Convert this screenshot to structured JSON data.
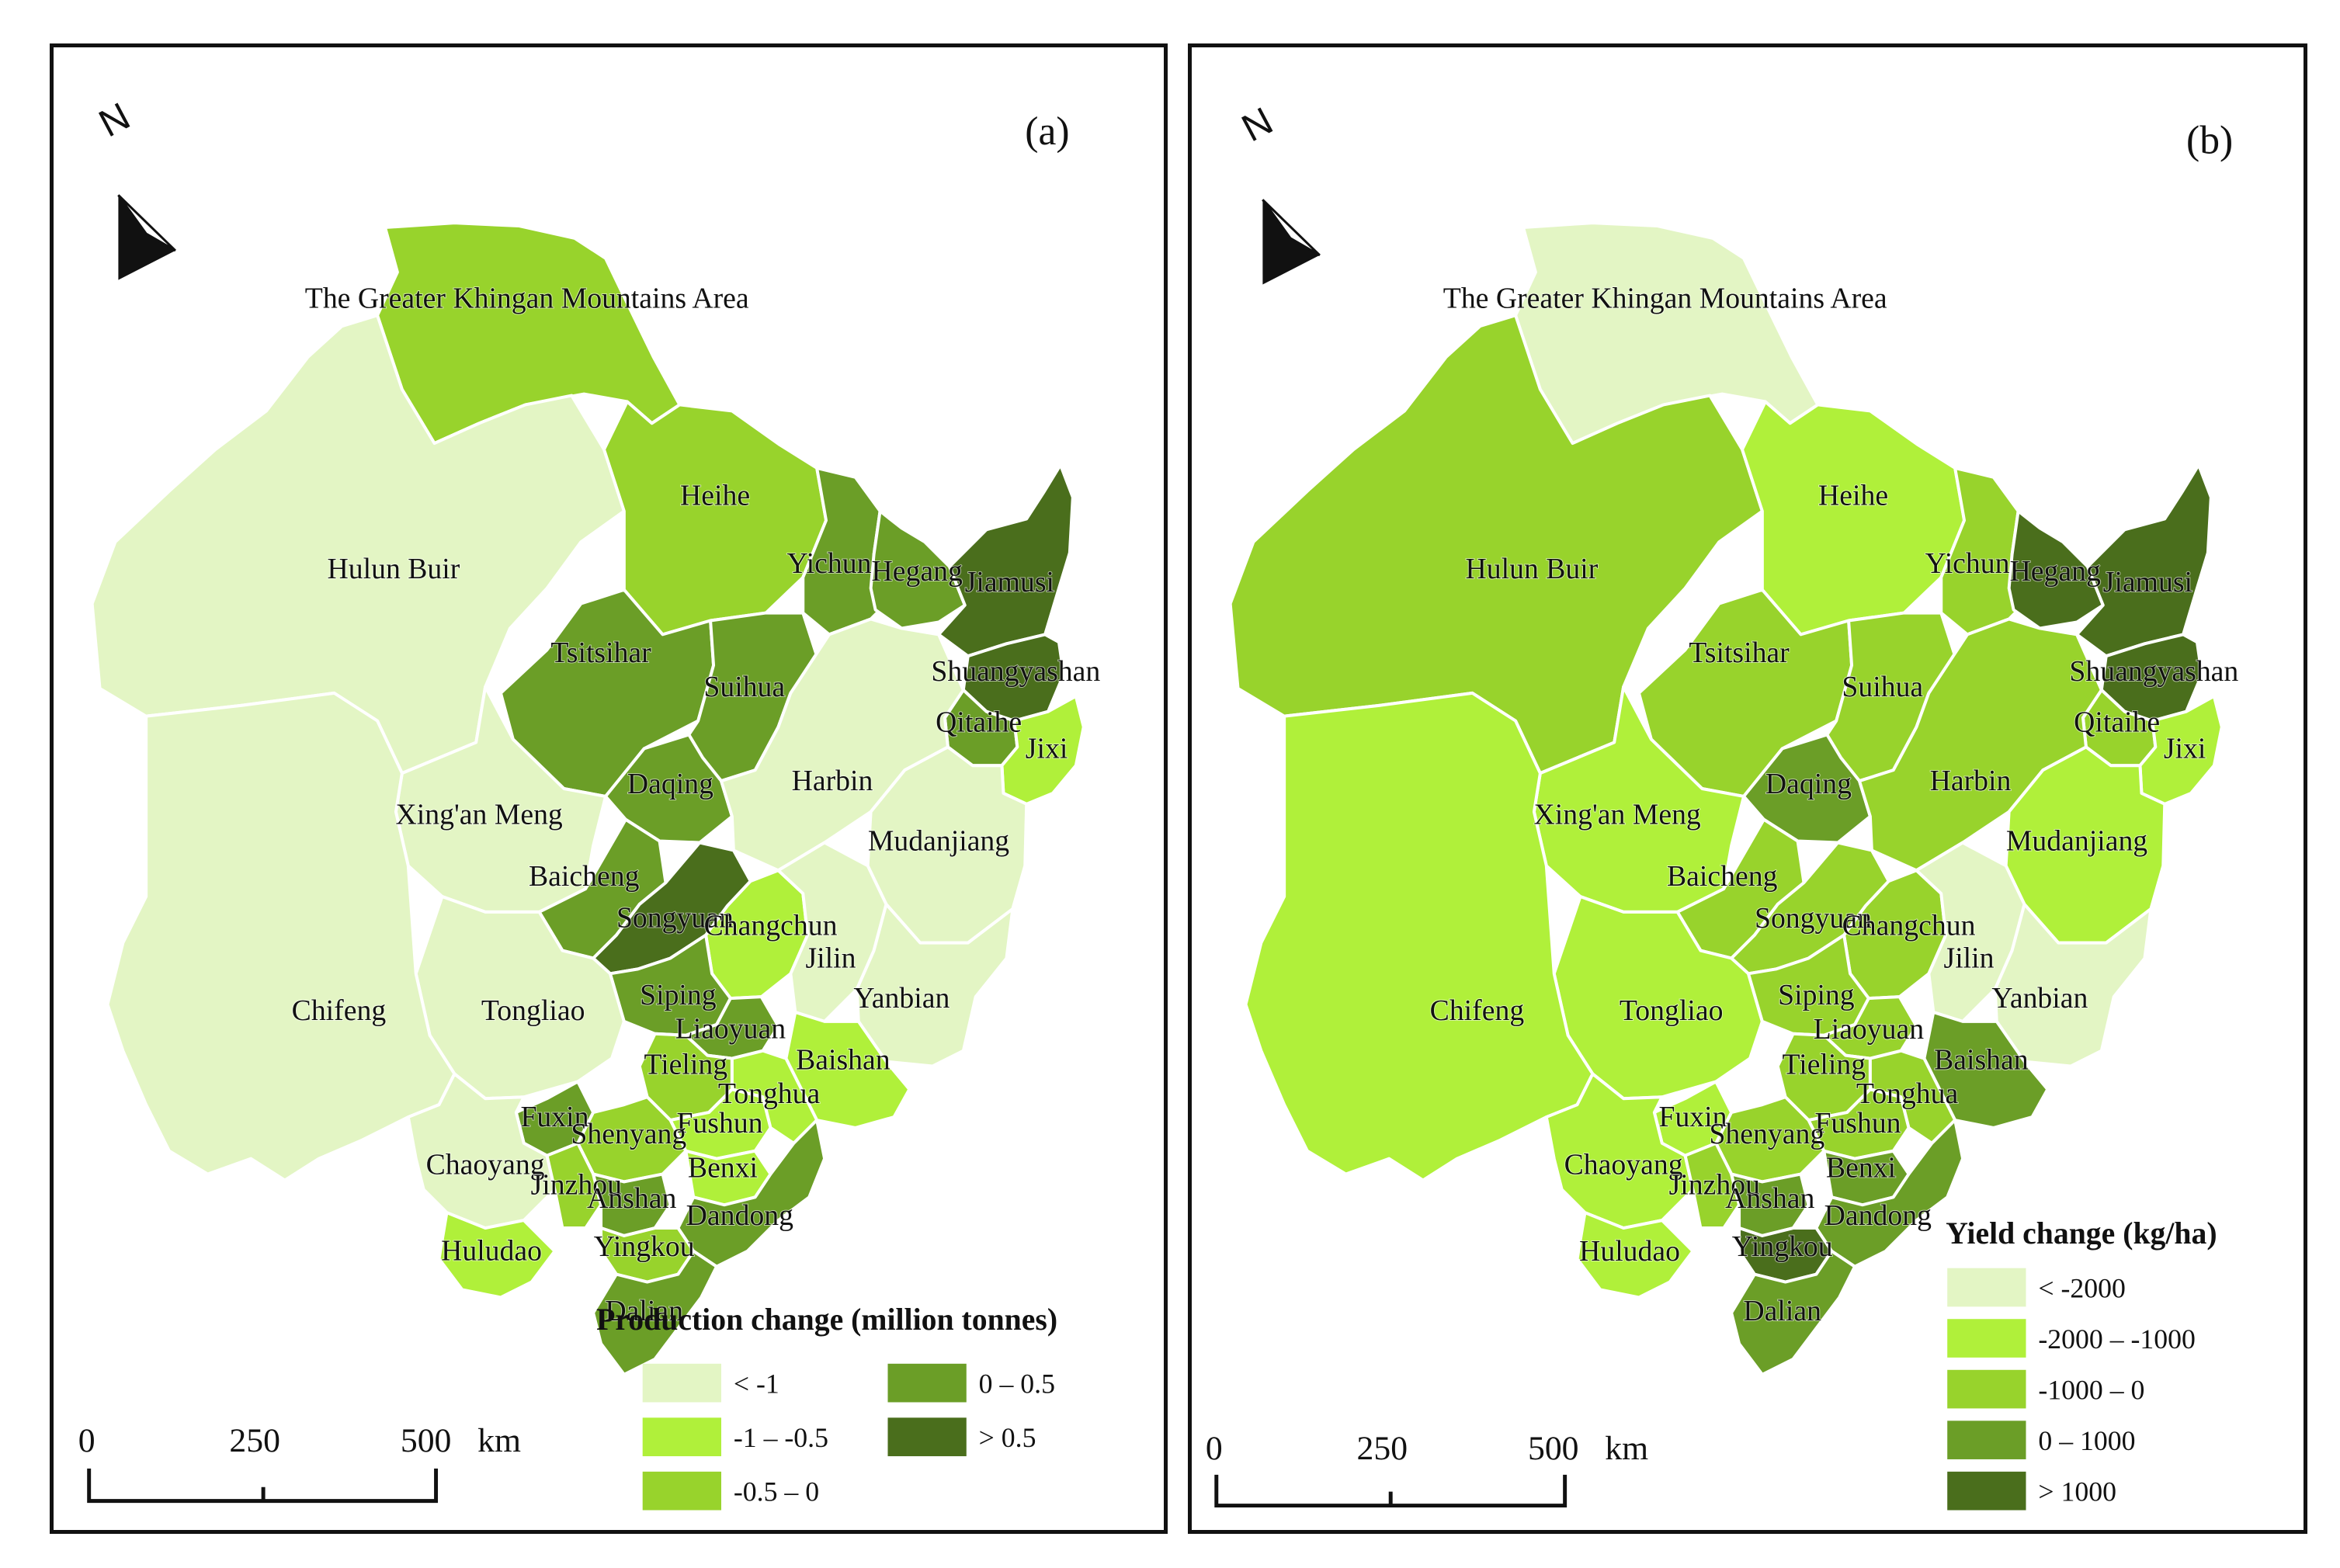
{
  "panels": {
    "a": {
      "letter": "(a)",
      "legend": {
        "title": "Production change (million tonnes)",
        "classes": [
          {
            "label": "< -1",
            "color": "#e3f5c4"
          },
          {
            "label": "-1 – -0.5",
            "color": "#b0f03a"
          },
          {
            "label": "-0.5 – 0",
            "color": "#98d32c"
          },
          {
            "label": "0 – 0.5",
            "color": "#6b9e27"
          },
          {
            "label": "> 0.5",
            "color": "#4a6e1c"
          }
        ]
      },
      "scale": {
        "ticks": [
          "0",
          "250",
          "500"
        ],
        "unit": "km"
      },
      "north": "N",
      "regions": {
        "The Greater Khingan Mountains Area": 2,
        "Hulun Buir": 0,
        "Heihe": 2,
        "Yichun": 3,
        "Hegang": 3,
        "Jiamusi": 4,
        "Tsitsihar": 3,
        "Suihua": 3,
        "Shuangyashan": 4,
        "Qitaihe": 3,
        "Jixi": 1,
        "Daqing": 3,
        "Harbin": 0,
        "Xing'an Meng": 0,
        "Mudanjiang": 0,
        "Baicheng": 3,
        "Songyuan": 4,
        "Changchun": 1,
        "Jilin": 0,
        "Yanbian": 0,
        "Tongliao": 0,
        "Siping": 3,
        "Liaoyuan": 3,
        "Chifeng": 0,
        "Tieling": 2,
        "Baishan": 1,
        "Fuxin": 3,
        "Fushun": 1,
        "Tonghua": 1,
        "Shenyang": 2,
        "Chaoyang": 0,
        "Jinzhou": 2,
        "Benxi": 1,
        "Anshan": 3,
        "Dandong": 3,
        "Huludao": 1,
        "Yingkou": 2,
        "Dalian": 3
      }
    },
    "b": {
      "letter": "(b)",
      "legend": {
        "title": "Yield change (kg/ha)",
        "classes": [
          {
            "label": "< -2000",
            "color": "#e3f5c4"
          },
          {
            "label": "-2000 – -1000",
            "color": "#b0f03a"
          },
          {
            "label": "-1000 – 0",
            "color": "#98d32c"
          },
          {
            "label": "0 – 1000",
            "color": "#6b9e27"
          },
          {
            "label": "> 1000",
            "color": "#4a6e1c"
          }
        ]
      },
      "scale": {
        "ticks": [
          "0",
          "250",
          "500"
        ],
        "unit": "km"
      },
      "north": "N",
      "regions": {
        "The Greater Khingan Mountains Area": 0,
        "Hulun Buir": 2,
        "Heihe": 1,
        "Yichun": 2,
        "Hegang": 4,
        "Jiamusi": 4,
        "Tsitsihar": 2,
        "Suihua": 2,
        "Shuangyashan": 4,
        "Qitaihe": 2,
        "Jixi": 1,
        "Daqing": 3,
        "Harbin": 2,
        "Xing'an Meng": 1,
        "Mudanjiang": 1,
        "Baicheng": 2,
        "Songyuan": 2,
        "Changchun": 2,
        "Jilin": 0,
        "Yanbian": 0,
        "Tongliao": 1,
        "Siping": 2,
        "Liaoyuan": 2,
        "Chifeng": 1,
        "Tieling": 2,
        "Baishan": 3,
        "Fuxin": 1,
        "Fushun": 2,
        "Tonghua": 2,
        "Shenyang": 2,
        "Chaoyang": 1,
        "Jinzhou": 2,
        "Benxi": 3,
        "Anshan": 3,
        "Dandong": 3,
        "Huludao": 1,
        "Yingkou": 4,
        "Dalian": 3
      }
    }
  }
}
